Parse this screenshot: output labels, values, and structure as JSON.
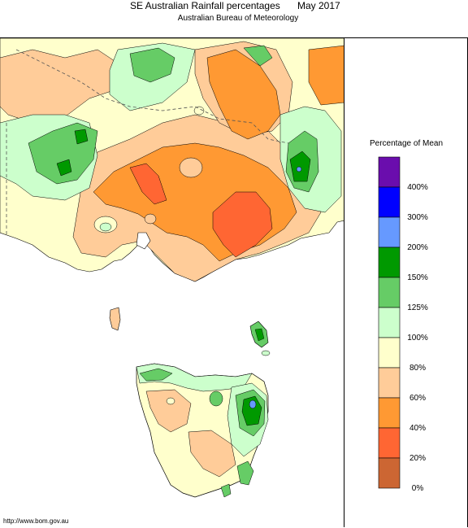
{
  "title": "SE Australian Rainfall percentages",
  "period": "May 2017",
  "subtitle": "Australian Bureau of Meteorology",
  "legend": {
    "title": "Percentage of Mean",
    "bins": [
      {
        "label": "",
        "color": "#6a0dad"
      },
      {
        "label": "400%",
        "color": "#0000ff"
      },
      {
        "label": "300%",
        "color": "#6699ff"
      },
      {
        "label": "200%",
        "color": "#009900"
      },
      {
        "label": "150%",
        "color": "#66cc66"
      },
      {
        "label": "125%",
        "color": "#ccffcc"
      },
      {
        "label": "100%",
        "color": "#ffffcc"
      },
      {
        "label": "80%",
        "color": "#ffcc99"
      },
      {
        "label": "60%",
        "color": "#ff9933"
      },
      {
        "label": "40%",
        "color": "#ff6633"
      },
      {
        "label": "20%",
        "color": "#cc6633"
      }
    ],
    "bottom_label": "0%"
  },
  "source_url": "http://www.bom.gov.au"
}
